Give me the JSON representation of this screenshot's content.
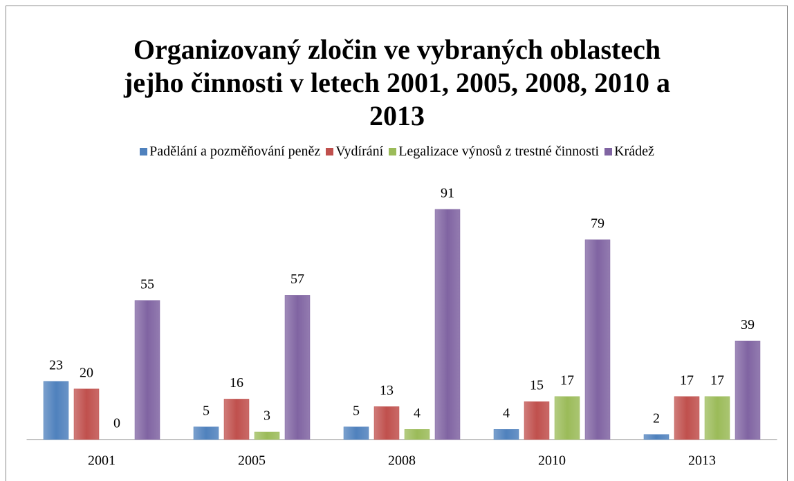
{
  "chart_data": {
    "type": "bar",
    "title": "Organizovaný zločin ve vybraných oblastech jejho činnosti v letech 2001, 2005, 2008, 2010 a 2013",
    "categories": [
      "2001",
      "2005",
      "2008",
      "2010",
      "2013"
    ],
    "series": [
      {
        "name": "Padělání a pozměňování peněz",
        "color": "#4f81bd",
        "values": [
          23,
          5,
          5,
          4,
          2
        ]
      },
      {
        "name": "Vydírání",
        "color": "#c0504d",
        "values": [
          20,
          16,
          13,
          15,
          17
        ]
      },
      {
        "name": "Legalizace výnosů z trestné činnosti",
        "color": "#9bbb59",
        "values": [
          0,
          3,
          4,
          17,
          17
        ]
      },
      {
        "name": "Krádež",
        "color": "#8064a2",
        "values": [
          55,
          57,
          91,
          79,
          39
        ]
      }
    ],
    "ylim": [
      0,
      100
    ],
    "legend": "top"
  }
}
